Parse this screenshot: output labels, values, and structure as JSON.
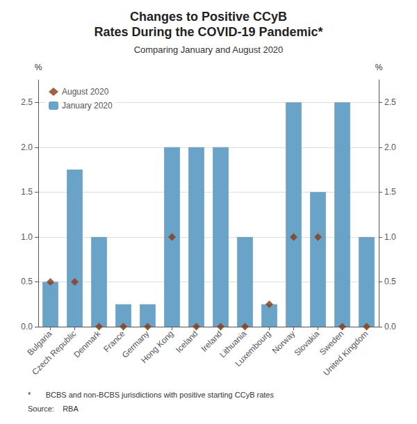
{
  "chart_data": {
    "type": "bar",
    "title": "Changes to Positive CCyB\nRates During the COVID-19 Pandemic*",
    "subtitle": "Comparing January and August 2020",
    "categories": [
      "Bulgaria",
      "Czech Republic",
      "Denmark",
      "France",
      "Germany",
      "Hong Kong",
      "Iceland",
      "Ireland",
      "Lithuania",
      "Luxembourg",
      "Norway",
      "Slovakia",
      "Sweden",
      "United Kingdom"
    ],
    "series": [
      {
        "name": "August 2020",
        "type": "scatter",
        "marker": "diamond",
        "color": "#8B3A0F",
        "values": [
          0.5,
          0.5,
          0.0,
          0.0,
          0.0,
          1.0,
          0.0,
          0.0,
          0.0,
          0.25,
          1.0,
          1.0,
          0.0,
          0.0
        ]
      },
      {
        "name": "January 2020",
        "type": "bar",
        "color": "#6aa3c8",
        "values": [
          0.5,
          1.75,
          1.0,
          0.25,
          0.25,
          2.0,
          2.0,
          2.0,
          1.0,
          0.25,
          2.5,
          1.5,
          2.5,
          1.0
        ]
      }
    ],
    "ylabel": "%",
    "y2label": "%",
    "ylim": [
      0,
      2.75
    ],
    "yticks": [
      {
        "value": 0.0,
        "label": "0.0"
      },
      0.5,
      {
        "value": 1.0,
        "label": "1.0"
      },
      1.5,
      {
        "value": 2.0,
        "label": "2.0"
      },
      2.5
    ],
    "y2lim": [
      0,
      2.75
    ],
    "y2ticks": [
      {
        "value": 0.0,
        "label": "0.0"
      },
      0.5,
      {
        "value": 1.0,
        "label": "1.0"
      },
      1.5,
      {
        "value": 2.0,
        "label": "2.0"
      },
      2.5
    ],
    "grid": true,
    "legend": "upper left",
    "annotations": [
      "*       BCBS and non-BCBS jurisdictions with positive starting CCyB rates",
      "Source:    RBA"
    ]
  }
}
